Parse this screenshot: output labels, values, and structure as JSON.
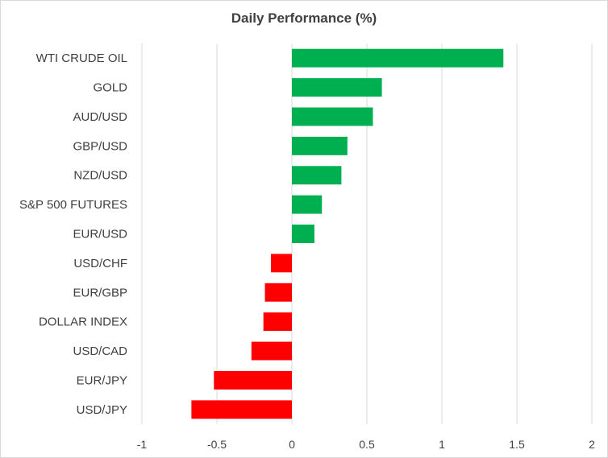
{
  "chart_data": {
    "type": "bar",
    "orientation": "horizontal",
    "title": "Daily Performance (%)",
    "categories": [
      "WTI CRUDE OIL",
      "GOLD",
      "AUD/USD",
      "GBP/USD",
      "NZD/USD",
      "S&P 500 FUTURES",
      "EUR/USD",
      "USD/CHF",
      "EUR/GBP",
      "DOLLAR INDEX",
      "USD/CAD",
      "EUR/JPY",
      "USD/JPY"
    ],
    "values": [
      1.41,
      0.6,
      0.54,
      0.37,
      0.33,
      0.2,
      0.15,
      -0.14,
      -0.18,
      -0.19,
      -0.27,
      -0.52,
      -0.67
    ],
    "xlim": [
      -1,
      2
    ],
    "xticks": [
      "-1",
      "-0.5",
      "0",
      "0.5",
      "1",
      "1.5",
      "2"
    ],
    "xtick_values": [
      -1,
      -0.5,
      0,
      0.5,
      1,
      1.5,
      2
    ],
    "grid": "vertical",
    "legend": "none",
    "colors": {
      "positive": "#00b050",
      "negative": "#ff0000",
      "grid": "#d9d9d9",
      "text": "#404040"
    }
  }
}
